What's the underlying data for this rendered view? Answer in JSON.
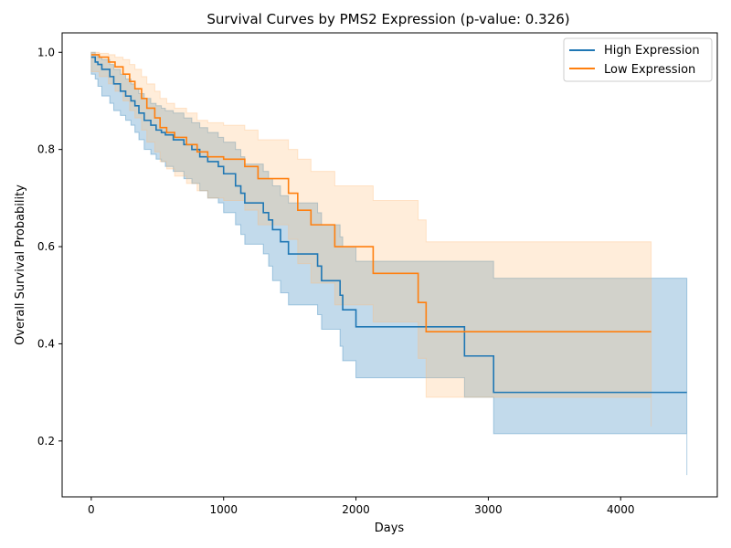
{
  "chart_data": {
    "type": "line",
    "title": "Survival Curves by PMS2 Expression (p-value: 0.326)",
    "xlabel": "Days",
    "ylabel": "Overall Survival Probability",
    "xlim": [
      -220,
      4730
    ],
    "ylim": [
      0.085,
      1.04
    ],
    "xticks": [
      0,
      1000,
      2000,
      3000,
      4000
    ],
    "yticks": [
      0.2,
      0.4,
      0.6,
      0.8,
      1.0
    ],
    "grid": false,
    "legend_position": "top-right",
    "series": [
      {
        "name": "High Expression",
        "color": "#1f77b4",
        "fill": "#1f77b4",
        "x": [
          0,
          30,
          50,
          80,
          140,
          170,
          220,
          260,
          300,
          330,
          360,
          400,
          450,
          490,
          530,
          560,
          620,
          700,
          760,
          820,
          880,
          960,
          1000,
          1090,
          1130,
          1160,
          1300,
          1340,
          1370,
          1430,
          1490,
          1710,
          1740,
          1880,
          1900,
          2000,
          2820,
          3040,
          4500
        ],
        "y": [
          0.99,
          0.98,
          0.975,
          0.965,
          0.95,
          0.935,
          0.92,
          0.91,
          0.9,
          0.89,
          0.875,
          0.86,
          0.85,
          0.84,
          0.835,
          0.83,
          0.82,
          0.81,
          0.8,
          0.785,
          0.775,
          0.765,
          0.75,
          0.725,
          0.71,
          0.69,
          0.67,
          0.655,
          0.635,
          0.61,
          0.585,
          0.56,
          0.53,
          0.5,
          0.47,
          0.435,
          0.375,
          0.3,
          0.3
        ],
        "ci_lower": [
          0.955,
          0.945,
          0.93,
          0.91,
          0.895,
          0.88,
          0.87,
          0.86,
          0.85,
          0.835,
          0.82,
          0.8,
          0.79,
          0.78,
          0.775,
          0.765,
          0.755,
          0.74,
          0.73,
          0.715,
          0.7,
          0.69,
          0.67,
          0.645,
          0.625,
          0.605,
          0.585,
          0.56,
          0.53,
          0.505,
          0.48,
          0.46,
          0.43,
          0.395,
          0.365,
          0.33,
          0.29,
          0.215,
          0.13
        ],
        "ci_upper": [
          1.0,
          0.995,
          0.99,
          0.985,
          0.975,
          0.965,
          0.955,
          0.945,
          0.935,
          0.925,
          0.915,
          0.905,
          0.895,
          0.89,
          0.885,
          0.88,
          0.875,
          0.865,
          0.855,
          0.845,
          0.835,
          0.825,
          0.815,
          0.8,
          0.785,
          0.77,
          0.755,
          0.74,
          0.725,
          0.705,
          0.69,
          0.67,
          0.645,
          0.62,
          0.6,
          0.57,
          0.57,
          0.535,
          0.485
        ]
      },
      {
        "name": "Low Expression",
        "color": "#ff7f0e",
        "fill": "#ffbb78",
        "x": [
          0,
          60,
          130,
          180,
          240,
          290,
          330,
          380,
          420,
          480,
          520,
          570,
          630,
          720,
          800,
          880,
          1000,
          1160,
          1260,
          1490,
          1560,
          1660,
          1840,
          2130,
          2470,
          2530,
          4230
        ],
        "y": [
          0.995,
          0.99,
          0.98,
          0.97,
          0.955,
          0.94,
          0.925,
          0.905,
          0.885,
          0.865,
          0.845,
          0.835,
          0.825,
          0.81,
          0.795,
          0.785,
          0.78,
          0.765,
          0.74,
          0.71,
          0.675,
          0.645,
          0.6,
          0.545,
          0.485,
          0.425,
          0.425
        ],
        "ci_lower": [
          0.96,
          0.95,
          0.935,
          0.92,
          0.9,
          0.88,
          0.865,
          0.84,
          0.815,
          0.795,
          0.775,
          0.76,
          0.745,
          0.73,
          0.715,
          0.7,
          0.695,
          0.675,
          0.645,
          0.615,
          0.565,
          0.525,
          0.48,
          0.445,
          0.37,
          0.29,
          0.23
        ],
        "ci_upper": [
          1.0,
          0.998,
          0.995,
          0.99,
          0.985,
          0.975,
          0.965,
          0.95,
          0.935,
          0.92,
          0.905,
          0.895,
          0.885,
          0.875,
          0.86,
          0.855,
          0.85,
          0.84,
          0.82,
          0.8,
          0.78,
          0.755,
          0.725,
          0.695,
          0.655,
          0.61,
          0.61
        ]
      }
    ]
  }
}
